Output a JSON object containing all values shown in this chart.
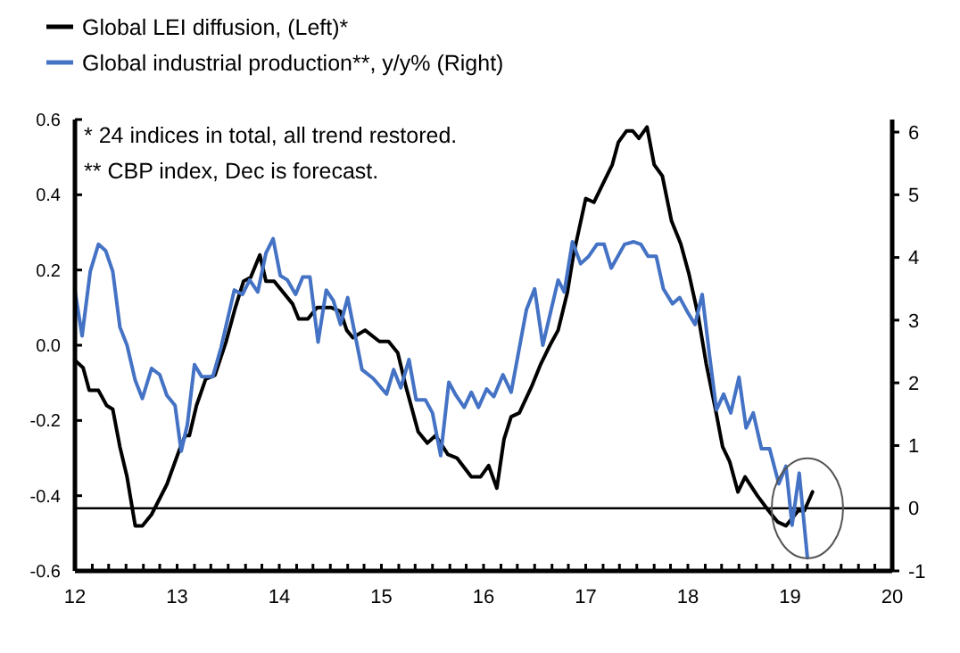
{
  "chart_data": {
    "type": "line",
    "legend": "top left",
    "grid": false,
    "xlim": [
      12,
      20
    ],
    "xticks": [
      12,
      {
        "value": 12.17,
        "label": null
      },
      {
        "value": 12.33,
        "label": null
      },
      {
        "value": 12.5,
        "label": null
      },
      {
        "value": 12.67,
        "label": null
      },
      {
        "value": 12.83,
        "label": null
      },
      13,
      {
        "value": 13.17,
        "label": null
      },
      {
        "value": 13.33,
        "label": null
      },
      {
        "value": 13.5,
        "label": null
      },
      {
        "value": 13.67,
        "label": null
      },
      {
        "value": 13.83,
        "label": null
      },
      14,
      {
        "value": 14.17,
        "label": null
      },
      {
        "value": 14.33,
        "label": null
      },
      {
        "value": 14.5,
        "label": null
      },
      {
        "value": 14.67,
        "label": null
      },
      {
        "value": 14.83,
        "label": null
      },
      15,
      {
        "value": 15.17,
        "label": null
      },
      {
        "value": 15.33,
        "label": null
      },
      {
        "value": 15.5,
        "label": null
      },
      {
        "value": 15.67,
        "label": null
      },
      {
        "value": 15.83,
        "label": null
      },
      16,
      {
        "value": 16.17,
        "label": null
      },
      {
        "value": 16.33,
        "label": null
      },
      {
        "value": 16.5,
        "label": null
      },
      {
        "value": 16.67,
        "label": null
      },
      {
        "value": 16.83,
        "label": null
      },
      17,
      {
        "value": 17.17,
        "label": null
      },
      {
        "value": 17.33,
        "label": null
      },
      {
        "value": 17.5,
        "label": null
      },
      {
        "value": 17.67,
        "label": null
      },
      {
        "value": 17.83,
        "label": null
      },
      18,
      {
        "value": 18.17,
        "label": null
      },
      {
        "value": 18.33,
        "label": null
      },
      {
        "value": 18.5,
        "label": null
      },
      {
        "value": 18.67,
        "label": null
      },
      {
        "value": 18.83,
        "label": null
      },
      19,
      {
        "value": 19.17,
        "label": null
      },
      {
        "value": 19.33,
        "label": null
      },
      {
        "value": 19.5,
        "label": null
      },
      {
        "value": 19.67,
        "label": null
      },
      {
        "value": 19.83,
        "label": null
      },
      20
    ],
    "ylim": [
      -0.6,
      0.6
    ],
    "yticks": [
      0.6,
      0.4,
      0.2,
      {
        "value": 0,
        "label": "0.0"
      },
      -0.2,
      -0.4,
      -0.6
    ],
    "y2lim": [
      -1,
      6.2
    ],
    "y2ticks": [
      -1,
      0,
      1,
      2,
      3,
      4,
      5,
      6
    ],
    "ref_lines": [
      {
        "axis": "y2",
        "value": 0,
        "color": "#000000"
      }
    ],
    "annotations": [
      "* 24 indices in total, all trend restored.",
      "** CBP index, Dec is forecast."
    ],
    "series": [
      {
        "name": "Global LEI diffusion, (Left)*",
        "color": "#000000",
        "x": [
          12.0,
          12.08,
          12.14,
          12.23,
          12.31,
          12.37,
          12.44,
          12.51,
          12.59,
          12.66,
          12.75,
          12.9,
          13.02,
          13.08,
          13.12,
          13.19,
          13.28,
          13.37,
          13.48,
          13.57,
          13.65,
          13.72,
          13.81,
          13.87,
          13.95,
          14.13,
          14.19,
          14.28,
          14.37,
          14.51,
          14.6,
          14.66,
          14.72,
          14.84,
          14.98,
          15.07,
          15.16,
          15.24,
          15.36,
          15.45,
          15.53,
          15.65,
          15.74,
          15.88,
          15.97,
          16.05,
          16.13,
          16.2,
          16.27,
          16.35,
          16.47,
          16.56,
          16.65,
          16.73,
          16.82,
          16.88,
          17.0,
          17.08,
          17.17,
          17.26,
          17.32,
          17.4,
          17.46,
          17.52,
          17.6,
          17.67,
          17.75,
          17.84,
          17.93,
          18.01,
          18.1,
          18.18,
          18.27,
          18.34,
          18.41,
          18.49,
          18.56,
          18.68,
          18.79,
          18.88,
          18.96,
          19.02,
          19.08,
          19.14,
          19.22
        ],
        "values": [
          -0.04,
          -0.06,
          -0.12,
          -0.12,
          -0.16,
          -0.17,
          -0.27,
          -0.35,
          -0.48,
          -0.48,
          -0.45,
          -0.37,
          -0.28,
          -0.24,
          -0.24,
          -0.16,
          -0.09,
          -0.08,
          0.01,
          0.1,
          0.17,
          0.18,
          0.24,
          0.17,
          0.17,
          0.11,
          0.07,
          0.07,
          0.1,
          0.1,
          0.09,
          0.04,
          0.02,
          0.04,
          0.01,
          0.01,
          -0.02,
          -0.11,
          -0.23,
          -0.26,
          -0.24,
          -0.29,
          -0.3,
          -0.35,
          -0.35,
          -0.32,
          -0.38,
          -0.25,
          -0.19,
          -0.18,
          -0.11,
          -0.05,
          0.0,
          0.04,
          0.14,
          0.24,
          0.39,
          0.38,
          0.43,
          0.48,
          0.54,
          0.57,
          0.57,
          0.55,
          0.58,
          0.48,
          0.45,
          0.33,
          0.27,
          0.19,
          0.08,
          -0.05,
          -0.17,
          -0.27,
          -0.31,
          -0.39,
          -0.35,
          -0.4,
          -0.44,
          -0.47,
          -0.48,
          -0.46,
          -0.44,
          -0.44,
          -0.39
        ]
      },
      {
        "name": "Global industrial production**, y/y% (Right)",
        "color": "#4472c4",
        "axis": "y2",
        "x": [
          12.0,
          12.07,
          12.15,
          12.23,
          12.3,
          12.37,
          12.44,
          12.51,
          12.59,
          12.66,
          12.75,
          12.83,
          12.9,
          12.98,
          13.04,
          13.1,
          13.17,
          13.24,
          13.35,
          13.43,
          13.56,
          13.64,
          13.71,
          13.79,
          13.87,
          13.94,
          14.01,
          14.08,
          14.16,
          14.23,
          14.3,
          14.38,
          14.46,
          14.53,
          14.6,
          14.67,
          14.81,
          14.92,
          15.05,
          15.12,
          15.19,
          15.27,
          15.34,
          15.43,
          15.5,
          15.58,
          15.66,
          15.73,
          15.81,
          15.88,
          15.95,
          16.03,
          16.1,
          16.19,
          16.27,
          16.42,
          16.5,
          16.58,
          16.73,
          16.79,
          16.87,
          16.95,
          17.03,
          17.11,
          17.18,
          17.25,
          17.38,
          17.47,
          17.54,
          17.61,
          17.69,
          17.76,
          17.85,
          17.92,
          18.0,
          18.07,
          18.14,
          18.21,
          18.28,
          18.35,
          18.42,
          18.5,
          18.57,
          18.64,
          18.72,
          18.8,
          18.89,
          18.96,
          19.02,
          19.09,
          19.17
        ],
        "values": [
          3.47,
          2.75,
          3.78,
          4.21,
          4.11,
          3.78,
          2.89,
          2.6,
          2.04,
          1.75,
          2.23,
          2.13,
          1.8,
          1.64,
          0.91,
          1.33,
          2.29,
          2.1,
          2.1,
          2.56,
          3.48,
          3.41,
          3.64,
          3.45,
          4.07,
          4.3,
          3.71,
          3.64,
          3.41,
          3.69,
          3.69,
          2.65,
          3.48,
          3.31,
          2.93,
          3.36,
          2.21,
          2.07,
          1.82,
          2.21,
          1.92,
          2.37,
          1.73,
          1.73,
          1.52,
          0.84,
          2.01,
          1.8,
          1.61,
          1.85,
          1.61,
          1.9,
          1.78,
          2.13,
          1.85,
          3.17,
          3.5,
          2.6,
          3.64,
          3.45,
          4.25,
          3.9,
          4.02,
          4.21,
          4.21,
          3.83,
          4.21,
          4.25,
          4.21,
          4.02,
          4.02,
          3.5,
          3.26,
          3.36,
          3.12,
          2.93,
          3.41,
          2.46,
          1.57,
          1.82,
          1.52,
          2.09,
          1.28,
          1.52,
          0.95,
          0.95,
          0.39,
          0.67,
          -0.27,
          0.56,
          -0.79
        ]
      }
    ]
  }
}
